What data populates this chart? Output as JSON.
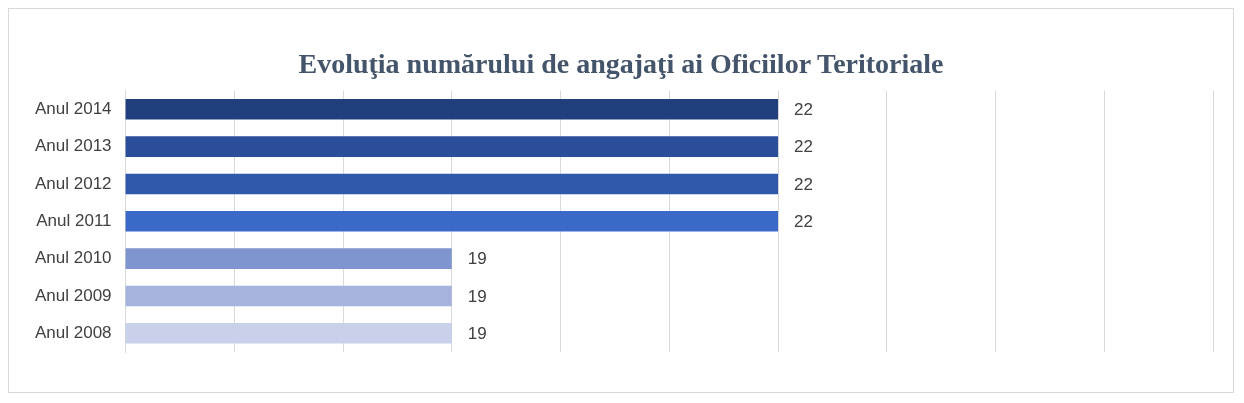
{
  "chart_data": {
    "type": "bar",
    "orientation": "horizontal",
    "title": "Evoluţia numărului de angajaţi ai Oficiilor Teritoriale",
    "categories": [
      "Anul 2014",
      "Anul 2013",
      "Anul 2012",
      "Anul 2011",
      "Anul 2010",
      "Anul 2009",
      "Anul 2008"
    ],
    "values": [
      22,
      22,
      22,
      22,
      19,
      19,
      19
    ],
    "colors": [
      "#213f7c",
      "#2a4e99",
      "#2f58ab",
      "#3b69c8",
      "#7f95cf",
      "#a5b3de",
      "#c9d1ea"
    ],
    "xlim": [
      16,
      26
    ],
    "xticks": [
      {
        "value": 16,
        "label": null
      },
      {
        "value": 17,
        "label": null
      },
      {
        "value": 18,
        "label": null
      },
      {
        "value": 19,
        "label": null
      },
      {
        "value": 20,
        "label": null
      },
      {
        "value": 21,
        "label": null
      },
      {
        "value": 22,
        "label": null
      },
      {
        "value": 23,
        "label": null
      },
      {
        "value": 24,
        "label": null
      },
      {
        "value": 25,
        "label": null
      },
      {
        "value": 26,
        "label": null
      }
    ],
    "grid": "x",
    "tick_labels": "y",
    "data_labels": true,
    "legend": false
  }
}
